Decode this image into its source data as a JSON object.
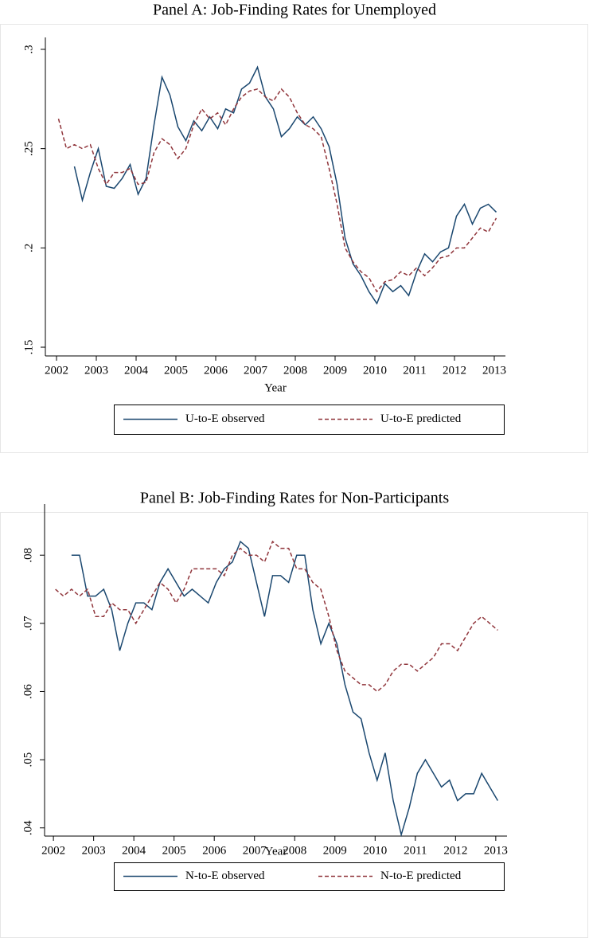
{
  "chart_data": [
    {
      "type": "line",
      "title": "Panel A: Job-Finding Rates for Unemployed",
      "x_label": "Year",
      "x": [
        2002.05,
        2002.25,
        2002.45,
        2002.65,
        2002.85,
        2003.05,
        2003.25,
        2003.45,
        2003.65,
        2003.85,
        2004.05,
        2004.25,
        2004.45,
        2004.65,
        2004.85,
        2005.05,
        2005.25,
        2005.45,
        2005.65,
        2005.85,
        2006.05,
        2006.25,
        2006.45,
        2006.65,
        2006.85,
        2007.05,
        2007.25,
        2007.45,
        2007.65,
        2007.85,
        2008.05,
        2008.25,
        2008.45,
        2008.65,
        2008.85,
        2009.05,
        2009.25,
        2009.45,
        2009.65,
        2009.85,
        2010.05,
        2010.25,
        2010.45,
        2010.65,
        2010.85,
        2011.05,
        2011.25,
        2011.45,
        2011.65,
        2011.85,
        2012.05,
        2012.25,
        2012.45,
        2012.65,
        2012.85,
        2013.05
      ],
      "series": [
        {
          "name": "U-to-E observed",
          "color": "#1a476f",
          "dash": false,
          "values": [
            null,
            null,
            0.241,
            0.224,
            0.238,
            0.25,
            0.231,
            0.23,
            0.235,
            0.242,
            0.227,
            0.235,
            0.262,
            0.286,
            0.277,
            0.261,
            0.254,
            0.264,
            0.259,
            0.266,
            0.26,
            0.27,
            0.268,
            0.28,
            0.283,
            0.291,
            0.276,
            0.27,
            0.256,
            0.26,
            0.266,
            0.262,
            0.266,
            0.26,
            0.251,
            0.232,
            0.205,
            0.192,
            0.186,
            0.178,
            0.172,
            0.182,
            0.178,
            0.181,
            0.176,
            0.188,
            0.197,
            0.193,
            0.198,
            0.2,
            0.216,
            0.222,
            0.212,
            0.22,
            0.222,
            0.218
          ]
        },
        {
          "name": "U-to-E predicted",
          "color": "#90353b",
          "dash": true,
          "values": [
            0.265,
            0.25,
            0.252,
            0.25,
            0.252,
            0.24,
            0.232,
            0.238,
            0.238,
            0.24,
            0.232,
            0.233,
            0.248,
            0.255,
            0.252,
            0.245,
            0.25,
            0.262,
            0.27,
            0.265,
            0.268,
            0.262,
            0.27,
            0.276,
            0.279,
            0.28,
            0.276,
            0.274,
            0.28,
            0.276,
            0.268,
            0.262,
            0.26,
            0.256,
            0.24,
            0.222,
            0.2,
            0.193,
            0.188,
            0.185,
            0.178,
            0.183,
            0.184,
            0.188,
            0.186,
            0.19,
            0.186,
            0.19,
            0.195,
            0.196,
            0.2,
            0.2,
            0.205,
            0.21,
            0.208,
            0.215
          ]
        }
      ],
      "xlim": [
        2001.72,
        2013.28
      ],
      "ylim": [
        0.1456,
        0.306
      ],
      "xticks": [
        2002,
        2003,
        2004,
        2005,
        2006,
        2007,
        2008,
        2009,
        2010,
        2011,
        2012,
        2013
      ],
      "yticks": [
        {
          "value": 0.15,
          "label": ".15"
        },
        {
          "value": 0.2,
          "label": ".2"
        },
        {
          "value": 0.25,
          "label": ".25"
        },
        {
          "value": 0.3,
          "label": ".3"
        }
      ]
    },
    {
      "type": "line",
      "title": "Panel B: Job-Finding Rates for Non-Participants",
      "x_label": "Year",
      "x": [
        2002.05,
        2002.25,
        2002.45,
        2002.65,
        2002.85,
        2003.05,
        2003.25,
        2003.45,
        2003.65,
        2003.85,
        2004.05,
        2004.25,
        2004.45,
        2004.65,
        2004.85,
        2005.05,
        2005.25,
        2005.45,
        2005.65,
        2005.85,
        2006.05,
        2006.25,
        2006.45,
        2006.65,
        2006.85,
        2007.05,
        2007.25,
        2007.45,
        2007.65,
        2007.85,
        2008.05,
        2008.25,
        2008.45,
        2008.65,
        2008.85,
        2009.05,
        2009.25,
        2009.45,
        2009.65,
        2009.85,
        2010.05,
        2010.25,
        2010.45,
        2010.65,
        2010.85,
        2011.05,
        2011.25,
        2011.45,
        2011.65,
        2011.85,
        2012.05,
        2012.25,
        2012.45,
        2012.65,
        2012.85,
        2013.05
      ],
      "series": [
        {
          "name": "N-to-E observed",
          "color": "#1a476f",
          "dash": false,
          "values": [
            null,
            null,
            0.08,
            0.08,
            0.074,
            0.074,
            0.075,
            0.072,
            0.066,
            0.07,
            0.073,
            0.073,
            0.072,
            0.076,
            0.078,
            0.076,
            0.074,
            0.075,
            0.074,
            0.073,
            0.076,
            0.078,
            0.079,
            0.082,
            0.081,
            0.076,
            0.071,
            0.077,
            0.077,
            0.076,
            0.08,
            0.08,
            0.072,
            0.067,
            0.07,
            0.067,
            0.061,
            0.057,
            0.056,
            0.051,
            0.047,
            0.051,
            0.044,
            0.039,
            0.043,
            0.048,
            0.05,
            0.048,
            0.046,
            0.047,
            0.044,
            0.045,
            0.045,
            0.048,
            0.046,
            0.044
          ]
        },
        {
          "name": "N-to-E predicted",
          "color": "#90353b",
          "dash": true,
          "values": [
            0.075,
            0.074,
            0.075,
            0.074,
            0.075,
            0.071,
            0.071,
            0.073,
            0.072,
            0.072,
            0.07,
            0.072,
            0.074,
            0.076,
            0.075,
            0.073,
            0.075,
            0.078,
            0.078,
            0.078,
            0.078,
            0.077,
            0.08,
            0.081,
            0.08,
            0.08,
            0.079,
            0.082,
            0.081,
            0.081,
            0.078,
            0.078,
            0.076,
            0.075,
            0.071,
            0.066,
            0.063,
            0.062,
            0.061,
            0.061,
            0.06,
            0.061,
            0.063,
            0.064,
            0.064,
            0.063,
            0.064,
            0.065,
            0.067,
            0.067,
            0.066,
            0.068,
            0.07,
            0.071,
            0.07,
            0.069
          ]
        }
      ],
      "xlim": [
        2001.78,
        2013.28
      ],
      "ylim": [
        0.0388,
        0.0875
      ],
      "xticks": [
        2002,
        2003,
        2004,
        2005,
        2006,
        2007,
        2008,
        2009,
        2010,
        2011,
        2012,
        2013
      ],
      "yticks": [
        {
          "value": 0.04,
          "label": ".04"
        },
        {
          "value": 0.05,
          "label": ".05"
        },
        {
          "value": 0.06,
          "label": ".06"
        },
        {
          "value": 0.07,
          "label": ".07"
        },
        {
          "value": 0.08,
          "label": ".08"
        }
      ]
    }
  ]
}
